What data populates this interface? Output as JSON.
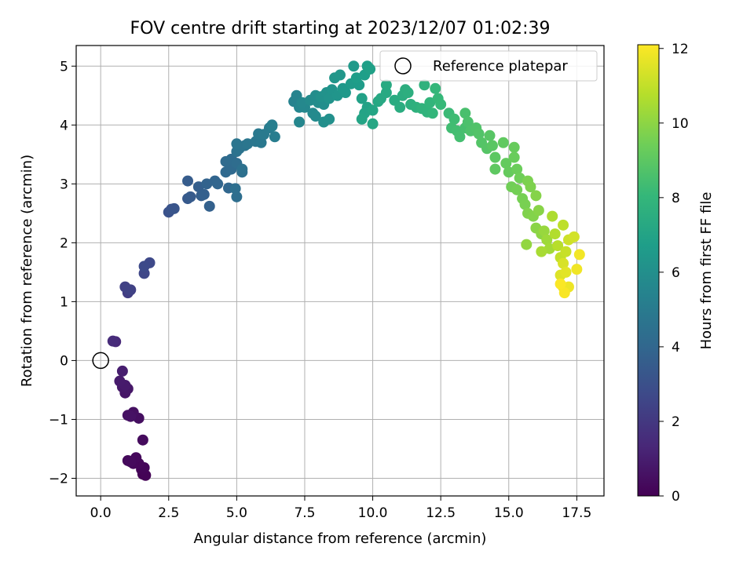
{
  "chart_data": {
    "type": "scatter",
    "title": "FOV centre drift starting at 2023/12/07 01:02:39",
    "xlabel": "Angular distance from reference (arcmin)",
    "ylabel": "Rotation from reference (arcmin)",
    "xlim": [
      -0.9,
      18.5
    ],
    "ylim": [
      -2.3,
      5.35
    ],
    "x_ticks": [
      0.0,
      2.5,
      5.0,
      7.5,
      10.0,
      12.5,
      15.0,
      17.5
    ],
    "x_tick_labels": [
      "0.0",
      "2.5",
      "5.0",
      "7.5",
      "10.0",
      "12.5",
      "15.0",
      "17.5"
    ],
    "y_ticks": [
      -2,
      -1,
      0,
      1,
      2,
      3,
      4,
      5
    ],
    "y_tick_labels": [
      "−2",
      "−1",
      "0",
      "1",
      "2",
      "3",
      "4",
      "5"
    ],
    "grid": true,
    "legend_position": "top-right",
    "legend": [
      {
        "label": "Reference platepar",
        "marker": "open-circle"
      }
    ],
    "reference_point": {
      "x": 0.0,
      "y": 0.0
    },
    "colorbar": {
      "label": "Hours from first FF file",
      "range": [
        0,
        12.1
      ],
      "ticks": [
        0,
        2,
        4,
        6,
        8,
        10,
        12
      ],
      "tick_labels": [
        "0",
        "2",
        "4",
        "6",
        "8",
        "10",
        "12"
      ],
      "colormap": [
        "#440154",
        "#482878",
        "#3e4989",
        "#31688e",
        "#26828e",
        "#1f9e89",
        "#35b779",
        "#6ece58",
        "#b5de2b",
        "#fde725"
      ]
    },
    "points": [
      [
        1.55,
        -1.93,
        0.05
      ],
      [
        1.65,
        -1.95,
        0.08
      ],
      [
        1.5,
        -1.85,
        0.1
      ],
      [
        1.6,
        -1.82,
        0.15
      ],
      [
        1.4,
        -1.75,
        0.2
      ],
      [
        1.2,
        -1.75,
        0.22
      ],
      [
        1.3,
        -1.65,
        0.25
      ],
      [
        1.0,
        -1.7,
        0.28
      ],
      [
        1.1,
        -1.72,
        0.3
      ],
      [
        1.55,
        -1.35,
        0.35
      ],
      [
        1.4,
        -0.98,
        0.45
      ],
      [
        1.2,
        -0.88,
        0.5
      ],
      [
        1.0,
        -0.93,
        0.55
      ],
      [
        1.1,
        -0.95,
        0.6
      ],
      [
        0.9,
        -0.55,
        0.7
      ],
      [
        1.0,
        -0.48,
        0.75
      ],
      [
        0.8,
        -0.45,
        0.8
      ],
      [
        0.9,
        -0.42,
        0.85
      ],
      [
        0.7,
        -0.35,
        0.9
      ],
      [
        0.8,
        -0.18,
        1.0
      ],
      [
        0.55,
        0.32,
        1.4
      ],
      [
        0.45,
        0.33,
        1.5
      ],
      [
        1.0,
        1.15,
        2.2
      ],
      [
        1.1,
        1.2,
        2.3
      ],
      [
        0.9,
        1.25,
        2.35
      ],
      [
        1.05,
        1.2,
        2.4
      ],
      [
        1.6,
        1.48,
        2.6
      ],
      [
        1.8,
        1.66,
        2.7
      ],
      [
        1.6,
        1.6,
        2.75
      ],
      [
        2.5,
        2.52,
        3.1
      ],
      [
        2.6,
        2.57,
        3.15
      ],
      [
        2.7,
        2.58,
        3.2
      ],
      [
        3.2,
        2.75,
        3.4
      ],
      [
        3.3,
        2.78,
        3.45
      ],
      [
        3.2,
        3.05,
        3.5
      ],
      [
        3.7,
        2.8,
        3.6
      ],
      [
        3.6,
        2.95,
        3.65
      ],
      [
        3.8,
        2.82,
        3.7
      ],
      [
        4.0,
        2.62,
        3.75
      ],
      [
        3.9,
        3.0,
        3.8
      ],
      [
        4.2,
        3.05,
        3.9
      ],
      [
        4.3,
        3.0,
        3.95
      ],
      [
        4.7,
        2.93,
        4.0
      ],
      [
        4.6,
        3.2,
        4.1
      ],
      [
        4.8,
        3.25,
        4.15
      ],
      [
        4.6,
        3.38,
        4.2
      ],
      [
        4.8,
        3.42,
        4.25
      ],
      [
        5.0,
        3.35,
        4.3
      ],
      [
        5.0,
        2.78,
        4.35
      ],
      [
        4.95,
        2.92,
        4.4
      ],
      [
        5.2,
        3.2,
        4.45
      ],
      [
        5.2,
        3.25,
        4.5
      ],
      [
        5.0,
        3.55,
        4.55
      ],
      [
        5.1,
        3.6,
        4.6
      ],
      [
        5.3,
        3.65,
        4.65
      ],
      [
        5.0,
        3.68,
        4.7
      ],
      [
        5.4,
        3.68,
        4.75
      ],
      [
        5.7,
        3.72,
        4.8
      ],
      [
        5.9,
        3.7,
        4.85
      ],
      [
        5.8,
        3.85,
        4.9
      ],
      [
        6.0,
        3.84,
        4.95
      ],
      [
        6.2,
        3.95,
        5.0
      ],
      [
        6.3,
        4.0,
        5.05
      ],
      [
        6.4,
        3.8,
        5.1
      ],
      [
        6.3,
        3.98,
        5.15
      ],
      [
        7.1,
        4.4,
        5.4
      ],
      [
        7.2,
        4.5,
        5.45
      ],
      [
        7.3,
        4.3,
        5.5
      ],
      [
        7.3,
        4.05,
        5.55
      ],
      [
        7.5,
        4.3,
        5.6
      ],
      [
        7.4,
        4.38,
        5.65
      ],
      [
        7.8,
        4.2,
        5.7
      ],
      [
        7.9,
        4.15,
        5.75
      ],
      [
        7.7,
        4.42,
        5.8
      ],
      [
        8.0,
        4.38,
        5.85
      ],
      [
        7.9,
        4.5,
        5.9
      ],
      [
        8.2,
        4.35,
        5.95
      ],
      [
        8.2,
        4.05,
        6.0
      ],
      [
        8.4,
        4.1,
        6.05
      ],
      [
        8.1,
        4.48,
        6.1
      ],
      [
        8.3,
        4.55,
        6.15
      ],
      [
        8.4,
        4.45,
        6.2
      ],
      [
        8.5,
        4.6,
        6.25
      ],
      [
        8.7,
        4.5,
        6.3
      ],
      [
        8.6,
        4.8,
        6.35
      ],
      [
        8.8,
        4.85,
        6.4
      ],
      [
        8.9,
        4.62,
        6.45
      ],
      [
        9.0,
        4.55,
        6.5
      ],
      [
        9.3,
        5.0,
        6.55
      ],
      [
        9.2,
        4.7,
        6.6
      ],
      [
        9.5,
        4.68,
        6.65
      ],
      [
        9.4,
        4.8,
        6.7
      ],
      [
        9.7,
        4.85,
        6.75
      ],
      [
        9.8,
        5.0,
        6.8
      ],
      [
        9.9,
        4.95,
        6.85
      ],
      [
        9.6,
        4.45,
        6.9
      ],
      [
        9.8,
        4.3,
        6.95
      ],
      [
        9.7,
        4.2,
        7.0
      ],
      [
        9.6,
        4.1,
        7.05
      ],
      [
        10.0,
        4.25,
        7.1
      ],
      [
        10.0,
        4.02,
        7.15
      ],
      [
        10.2,
        4.4,
        7.2
      ],
      [
        10.3,
        4.45,
        7.25
      ],
      [
        10.5,
        4.55,
        7.3
      ],
      [
        10.5,
        4.68,
        7.35
      ],
      [
        10.8,
        4.42,
        7.4
      ],
      [
        11.0,
        4.3,
        7.45
      ],
      [
        11.1,
        4.5,
        7.5
      ],
      [
        11.2,
        4.6,
        7.55
      ],
      [
        11.3,
        4.55,
        7.6
      ],
      [
        11.4,
        4.35,
        7.65
      ],
      [
        11.6,
        4.3,
        7.7
      ],
      [
        11.9,
        4.68,
        7.75
      ],
      [
        11.8,
        4.28,
        7.8
      ],
      [
        12.0,
        4.22,
        7.85
      ],
      [
        12.1,
        4.38,
        7.9
      ],
      [
        12.2,
        4.2,
        7.95
      ],
      [
        12.3,
        4.62,
        8.0
      ],
      [
        12.4,
        4.45,
        8.05
      ],
      [
        12.5,
        4.35,
        8.1
      ],
      [
        12.8,
        4.2,
        8.2
      ],
      [
        13.0,
        4.1,
        8.3
      ],
      [
        12.9,
        3.95,
        8.35
      ],
      [
        13.1,
        3.9,
        8.4
      ],
      [
        13.2,
        3.8,
        8.45
      ],
      [
        13.4,
        3.95,
        8.5
      ],
      [
        13.4,
        4.2,
        8.55
      ],
      [
        13.5,
        4.05,
        8.6
      ],
      [
        13.6,
        3.9,
        8.65
      ],
      [
        13.8,
        3.95,
        8.7
      ],
      [
        13.9,
        3.85,
        8.75
      ],
      [
        14.0,
        3.7,
        8.8
      ],
      [
        14.2,
        3.6,
        8.85
      ],
      [
        14.3,
        3.82,
        8.9
      ],
      [
        14.4,
        3.65,
        8.95
      ],
      [
        14.5,
        3.45,
        9.0
      ],
      [
        14.5,
        3.25,
        9.05
      ],
      [
        14.8,
        3.7,
        9.1
      ],
      [
        14.9,
        3.35,
        9.15
      ],
      [
        15.0,
        3.2,
        9.2
      ],
      [
        15.2,
        3.62,
        9.25
      ],
      [
        15.2,
        3.45,
        9.3
      ],
      [
        15.3,
        3.25,
        9.35
      ],
      [
        15.4,
        3.1,
        9.4
      ],
      [
        15.1,
        2.95,
        9.45
      ],
      [
        15.3,
        2.9,
        9.5
      ],
      [
        15.5,
        2.75,
        9.55
      ],
      [
        15.6,
        2.65,
        9.6
      ],
      [
        15.7,
        3.05,
        9.65
      ],
      [
        15.8,
        2.95,
        9.7
      ],
      [
        15.7,
        2.5,
        9.75
      ],
      [
        15.9,
        2.45,
        9.8
      ],
      [
        16.0,
        2.8,
        9.85
      ],
      [
        16.1,
        2.55,
        9.9
      ],
      [
        16.0,
        2.25,
        9.95
      ],
      [
        16.2,
        2.15,
        10.0
      ],
      [
        15.65,
        1.97,
        10.1
      ],
      [
        16.3,
        2.2,
        10.2
      ],
      [
        16.4,
        2.05,
        10.3
      ],
      [
        16.5,
        1.9,
        10.4
      ],
      [
        16.2,
        1.85,
        10.5
      ],
      [
        16.6,
        2.45,
        10.6
      ],
      [
        16.7,
        2.15,
        10.7
      ],
      [
        16.8,
        1.95,
        10.8
      ],
      [
        17.0,
        2.3,
        10.9
      ],
      [
        16.9,
        1.75,
        11.0
      ],
      [
        17.1,
        1.85,
        11.1
      ],
      [
        17.2,
        2.05,
        11.2
      ],
      [
        17.4,
        2.1,
        11.3
      ],
      [
        17.0,
        1.65,
        11.4
      ],
      [
        16.9,
        1.45,
        11.5
      ],
      [
        17.1,
        1.5,
        11.6
      ],
      [
        17.0,
        1.25,
        11.7
      ],
      [
        17.2,
        1.25,
        11.8
      ],
      [
        17.5,
        1.55,
        11.85
      ],
      [
        17.6,
        1.8,
        11.9
      ],
      [
        17.05,
        1.15,
        12.0
      ],
      [
        16.9,
        1.3,
        12.05
      ]
    ]
  }
}
